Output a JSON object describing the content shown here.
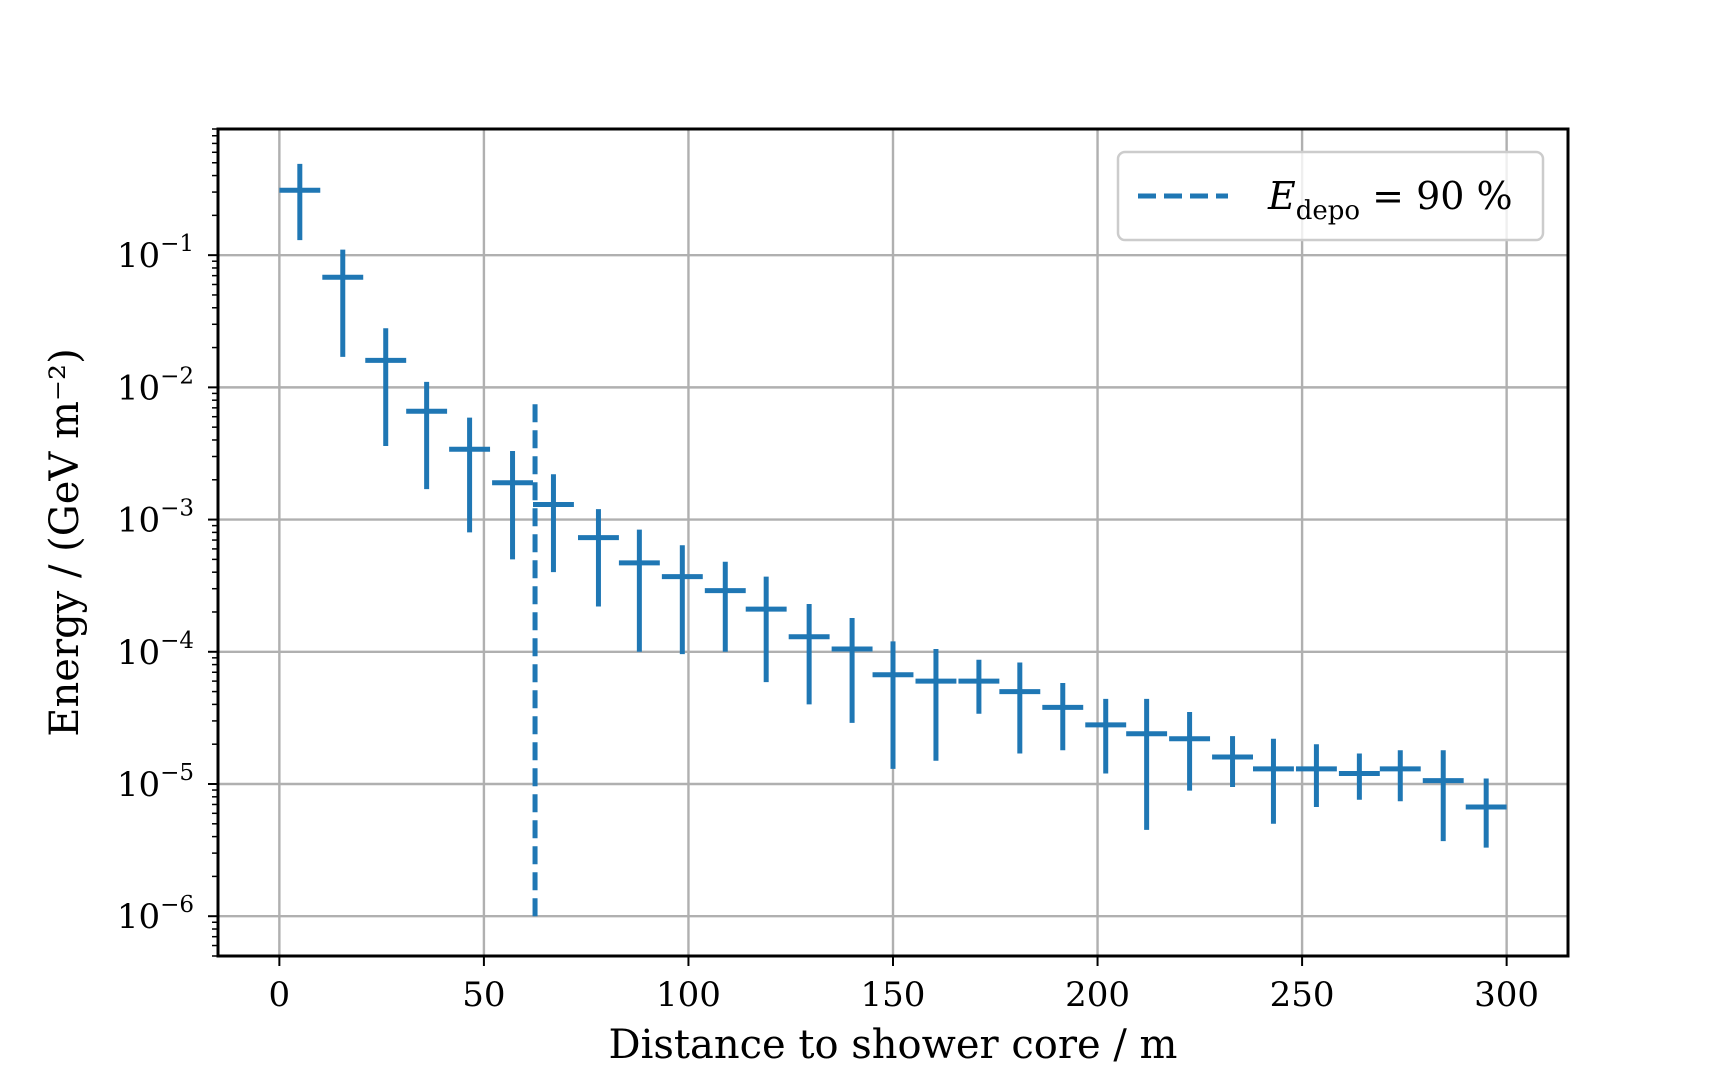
{
  "chart_data": {
    "type": "errorbar",
    "xlabel": "Distance to shower core / m",
    "ylabel": "Energy / (GeV m⁻²)",
    "xlim": [
      -15,
      315
    ],
    "ylim": [
      5e-07,
      0.9
    ],
    "yscale": "log",
    "grid": true,
    "legend_placement": "top-right",
    "x_ticks": [
      {
        "value": 0,
        "label": "0"
      },
      {
        "value": 50,
        "label": "50"
      },
      {
        "value": 100,
        "label": "100"
      },
      {
        "value": 150,
        "label": "150"
      },
      {
        "value": 200,
        "label": "200"
      },
      {
        "value": 250,
        "label": "250"
      },
      {
        "value": 300,
        "label": "300"
      }
    ],
    "y_ticks": [
      {
        "value": 0.1,
        "base": "10",
        "exp": "−1"
      },
      {
        "value": 0.01,
        "base": "10",
        "exp": "−2"
      },
      {
        "value": 0.001,
        "base": "10",
        "exp": "−3"
      },
      {
        "value": 0.0001,
        "base": "10",
        "exp": "−4"
      },
      {
        "value": 1e-05,
        "base": "10",
        "exp": "−5"
      },
      {
        "value": 1e-06,
        "base": "10",
        "exp": "−6"
      }
    ],
    "series": [
      {
        "color": "#1f77b4",
        "bin_half_width": 5,
        "points": [
          {
            "x": 5,
            "y": 0.31,
            "ylo": 0.13,
            "yhi": 0.49
          },
          {
            "x": 15.5,
            "y": 0.068,
            "ylo": 0.017,
            "yhi": 0.11
          },
          {
            "x": 26,
            "y": 0.016,
            "ylo": 0.0036,
            "yhi": 0.028
          },
          {
            "x": 36,
            "y": 0.0066,
            "ylo": 0.0017,
            "yhi": 0.011
          },
          {
            "x": 46.5,
            "y": 0.0034,
            "ylo": 0.0008,
            "yhi": 0.0059
          },
          {
            "x": 57,
            "y": 0.0019,
            "ylo": 0.0005,
            "yhi": 0.0033
          },
          {
            "x": 67,
            "y": 0.0013,
            "ylo": 0.0004,
            "yhi": 0.0022
          },
          {
            "x": 78,
            "y": 0.00073,
            "ylo": 0.00022,
            "yhi": 0.0012
          },
          {
            "x": 88,
            "y": 0.00047,
            "ylo": 0.0001,
            "yhi": 0.00084
          },
          {
            "x": 98.5,
            "y": 0.00037,
            "ylo": 9.6e-05,
            "yhi": 0.00064
          },
          {
            "x": 109,
            "y": 0.00029,
            "ylo": 0.0001,
            "yhi": 0.00048
          },
          {
            "x": 119,
            "y": 0.00021,
            "ylo": 5.9e-05,
            "yhi": 0.00037
          },
          {
            "x": 129.5,
            "y": 0.00013,
            "ylo": 4e-05,
            "yhi": 0.00023
          },
          {
            "x": 140,
            "y": 0.000105,
            "ylo": 2.9e-05,
            "yhi": 0.00018
          },
          {
            "x": 150,
            "y": 6.7e-05,
            "ylo": 1.3e-05,
            "yhi": 0.00012
          },
          {
            "x": 160.5,
            "y": 6e-05,
            "ylo": 1.5e-05,
            "yhi": 0.000105
          },
          {
            "x": 171,
            "y": 6e-05,
            "ylo": 3.4e-05,
            "yhi": 8.7e-05
          },
          {
            "x": 181,
            "y": 5e-05,
            "ylo": 1.7e-05,
            "yhi": 8.3e-05
          },
          {
            "x": 191.5,
            "y": 3.8e-05,
            "ylo": 1.8e-05,
            "yhi": 5.8e-05
          },
          {
            "x": 202,
            "y": 2.8e-05,
            "ylo": 1.2e-05,
            "yhi": 4.4e-05
          },
          {
            "x": 212,
            "y": 2.4e-05,
            "ylo": 4.5e-06,
            "yhi": 4.4e-05
          },
          {
            "x": 222.5,
            "y": 2.2e-05,
            "ylo": 8.9e-06,
            "yhi": 3.5e-05
          },
          {
            "x": 233,
            "y": 1.6e-05,
            "ylo": 9.5e-06,
            "yhi": 2.3e-05
          },
          {
            "x": 243,
            "y": 1.3e-05,
            "ylo": 5e-06,
            "yhi": 2.2e-05
          },
          {
            "x": 253.5,
            "y": 1.3e-05,
            "ylo": 6.7e-06,
            "yhi": 2e-05
          },
          {
            "x": 264,
            "y": 1.2e-05,
            "ylo": 7.6e-06,
            "yhi": 1.7e-05
          },
          {
            "x": 274,
            "y": 1.3e-05,
            "ylo": 7.4e-06,
            "yhi": 1.8e-05
          },
          {
            "x": 284.5,
            "y": 1.06e-05,
            "ylo": 3.7e-06,
            "yhi": 1.8e-05
          },
          {
            "x": 295,
            "y": 6.7e-06,
            "ylo": 3.3e-06,
            "yhi": 1.1e-05
          }
        ]
      }
    ],
    "vline": {
      "x": 62.5,
      "ymin": 1e-06,
      "ymax": 0.0085,
      "color": "#1f77b4",
      "style": "dashed"
    },
    "legend": {
      "entries": [
        {
          "symbol": "E",
          "sub": "depo",
          "rest": "= 90 %"
        }
      ]
    }
  }
}
